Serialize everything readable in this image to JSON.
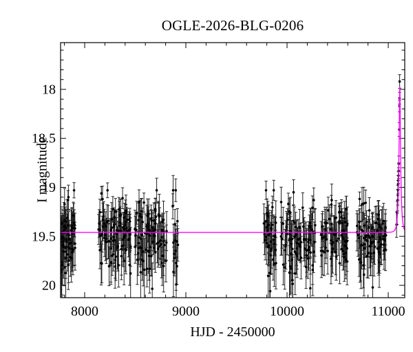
{
  "chart_data": {
    "type": "scatter",
    "title": "OGLE-2026-BLG-0206",
    "xlabel": "HJD - 2450000",
    "ylabel": "I magnitude",
    "xlim": [
      7762,
      11163
    ],
    "ylim": [
      17.523,
      20.126
    ],
    "y_axis_inverted": true,
    "grid": false,
    "x_major_ticks": [
      8000,
      9000,
      10000,
      11000
    ],
    "x_minor_step": 200,
    "y_major_ticks": [
      18,
      18.5,
      19,
      19.5,
      20
    ],
    "y_minor_step": 0.1,
    "colors": {
      "data_points": "#000000",
      "error_bars": "#222222",
      "model_curve": "#ff00ff",
      "frame": "#000000",
      "background": "#ffffff"
    },
    "model": {
      "type": "paczynski_microlensing",
      "I_baseline": 19.46,
      "t0": 11114,
      "tE_days": 18,
      "u0": 0.26,
      "I_peak": 17.97
    },
    "baseline_seasons": [
      {
        "hjd_range": [
          7765,
          7905
        ],
        "n_points": 70,
        "mean_mag": 19.52,
        "mag_scatter_sd": 0.17
      },
      {
        "hjd_range": [
          8136,
          8456
        ],
        "n_points": 95,
        "mean_mag": 19.5,
        "mag_scatter_sd": 0.17
      },
      {
        "hjd_range": [
          8497,
          8810
        ],
        "n_points": 90,
        "mean_mag": 19.52,
        "mag_scatter_sd": 0.18
      },
      {
        "hjd_range": [
          8864,
          8922
        ],
        "n_points": 16,
        "mean_mag": 19.5,
        "mag_scatter_sd": 0.24
      },
      {
        "hjd_range": [
          9769,
          9891
        ],
        "n_points": 40,
        "mean_mag": 19.52,
        "mag_scatter_sd": 0.19
      },
      {
        "hjd_range": [
          9939,
          10279
        ],
        "n_points": 85,
        "mean_mag": 19.55,
        "mag_scatter_sd": 0.19
      },
      {
        "hjd_range": [
          10333,
          10599
        ],
        "n_points": 70,
        "mean_mag": 19.5,
        "mag_scatter_sd": 0.17
      },
      {
        "hjd_range": [
          10687,
          10986
        ],
        "n_points": 80,
        "mean_mag": 19.5,
        "mag_scatter_sd": 0.17
      }
    ],
    "event_points": [
      {
        "hjd": 11082,
        "mag": 19.38,
        "err": 0.13
      },
      {
        "hjd": 11088,
        "mag": 19.26,
        "err": 0.12
      },
      {
        "hjd": 11093,
        "mag": 19.13,
        "err": 0.11
      },
      {
        "hjd": 11095,
        "mag": 19.08,
        "err": 0.1
      },
      {
        "hjd": 11096.5,
        "mag": 19.03,
        "err": 0.1
      },
      {
        "hjd": 11098,
        "mag": 18.97,
        "err": 0.09
      },
      {
        "hjd": 11100,
        "mag": 18.93,
        "err": 0.09
      },
      {
        "hjd": 11101.5,
        "mag": 18.88,
        "err": 0.08
      },
      {
        "hjd": 11103,
        "mag": 18.83,
        "err": 0.08
      },
      {
        "hjd": 11104.5,
        "mag": 18.76,
        "err": 0.08
      },
      {
        "hjd": 11108.5,
        "mag": 18.41,
        "err": 0.07
      },
      {
        "hjd": 11110.8,
        "mag": 18.17,
        "err": 0.06
      },
      {
        "hjd": 11111.7,
        "mag": 18.09,
        "err": 0.06
      },
      {
        "hjd": 11113,
        "mag": 17.92,
        "err": 0.07
      }
    ],
    "random_seed": 20260206
  }
}
